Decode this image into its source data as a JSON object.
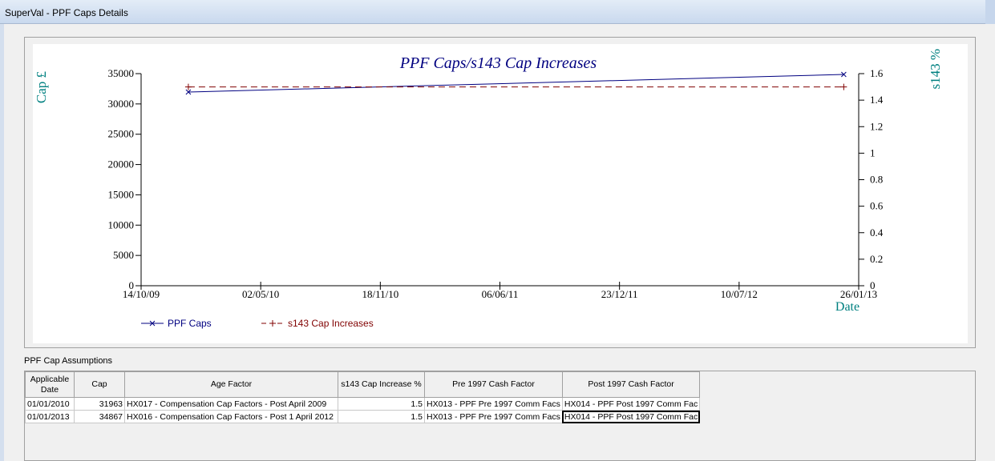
{
  "window": {
    "title": "SuperVal - PPF Caps Details"
  },
  "section": {
    "assumptions_label": "PPF Cap Assumptions"
  },
  "grid": {
    "columns": [
      "Applicable Date",
      "Cap",
      "Age Factor",
      "s143 Cap Increase %",
      "Pre 1997 Cash Factor",
      "Post 1997 Cash Factor"
    ],
    "rows": [
      {
        "date": "01/01/2010",
        "cap": "31963",
        "age_factor": "HX017 - Compensation Cap Factors - Post April 2009",
        "s143": "1.5",
        "pre1997": "HX013 - PPF Pre 1997 Comm Facs",
        "post1997": "HX014 - PPF Post 1997 Comm Fac"
      },
      {
        "date": "01/01/2013",
        "cap": "34867",
        "age_factor": "HX016 - Compensation Cap Factors - Post 1 April 2012",
        "s143": "1.5",
        "pre1997": "HX013 - PPF Pre 1997 Comm Facs",
        "post1997": "HX014 - PPF Post 1997 Comm Fac"
      }
    ]
  },
  "chart_data": {
    "type": "line",
    "title": "PPF Caps/s143 Cap Increases",
    "xlabel": "Date",
    "ylabel": "Cap £",
    "y2label": "s143 %",
    "x_ticks": [
      "14/10/09",
      "02/05/10",
      "18/11/10",
      "06/06/11",
      "23/12/11",
      "10/07/12",
      "26/01/13"
    ],
    "y_ticks": [
      "0",
      "5000",
      "10000",
      "15000",
      "20000",
      "25000",
      "30000",
      "35000"
    ],
    "y2_ticks": [
      "0",
      "0.2",
      "0.4",
      "0.6",
      "0.8",
      "1",
      "1.2",
      "1.4",
      "1.6"
    ],
    "ylim": [
      0,
      35000
    ],
    "y2lim": [
      0,
      1.6
    ],
    "xlim": [
      "14/10/09",
      "26/01/13"
    ],
    "grid": false,
    "legend_position": "bottom-left",
    "series": [
      {
        "name": "PPF Caps",
        "axis": "left",
        "color": "#000080",
        "style": "solid",
        "marker": "x",
        "x": [
          "01/01/2010",
          "01/01/2013"
        ],
        "values": [
          31963,
          34867
        ]
      },
      {
        "name": "s143 Cap Increases",
        "axis": "right",
        "color": "#800000",
        "style": "dashed",
        "marker": "+",
        "x": [
          "01/01/2010",
          "01/01/2013"
        ],
        "values": [
          1.5,
          1.5
        ]
      }
    ]
  },
  "colors": {
    "title": "#000080",
    "axis_label": "#008080",
    "ppf_line": "#000080",
    "s143_line": "#800000"
  }
}
